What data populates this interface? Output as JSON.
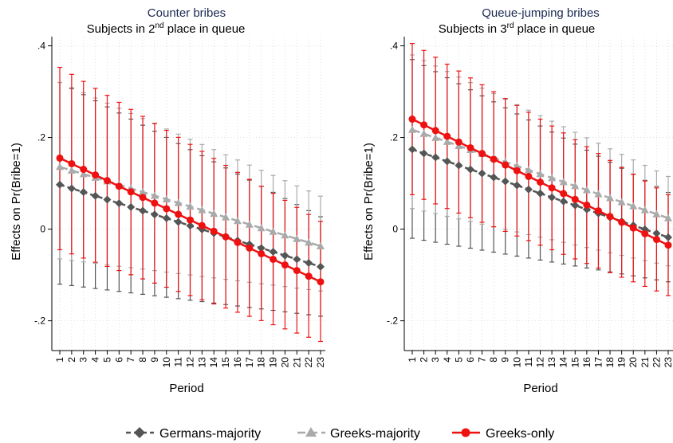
{
  "colors": {
    "Germans-majority": "#555555",
    "Greeks-majority": "#aaaaaa",
    "Greeks-only": "#ee1111"
  },
  "legend": {
    "placement": "bottom",
    "items": [
      "Germans-majority",
      "Greeks-majority",
      "Greeks-only"
    ]
  },
  "chart_data": [
    {
      "type": "line",
      "title": "Counter bribes",
      "subtitle": {
        "pre": "Subjects in 2",
        "sup": "nd",
        "post": " place in queue"
      },
      "xlabel": "Period",
      "ylabel": "Effects on Pr(Bribe=1)",
      "x": [
        1,
        2,
        3,
        4,
        5,
        6,
        7,
        8,
        9,
        10,
        11,
        12,
        13,
        14,
        15,
        16,
        17,
        18,
        19,
        20,
        21,
        22,
        23
      ],
      "xtick_labels": [
        "1",
        "2",
        "3",
        "4",
        "5",
        "6",
        "7",
        "8",
        "9",
        "10",
        "11",
        "12",
        "13",
        "14",
        "15",
        "16",
        "17",
        "18",
        "19",
        "20",
        "21",
        "22",
        "23"
      ],
      "ylim": [
        -0.265,
        0.42
      ],
      "yticks": [
        -0.2,
        0,
        0.2,
        0.4
      ],
      "ytick_labels": [
        "-.2",
        "0",
        ".2",
        ".4"
      ],
      "grid": true,
      "series": [
        {
          "name": "Germans-majority",
          "marker": "diamond",
          "dash": "6,4",
          "start": 0.097,
          "end": -0.082,
          "lower_start": -0.12,
          "lower_end": -0.19,
          "upper_start": 0.32,
          "upper_end": 0.027
        },
        {
          "name": "Greeks-majority",
          "marker": "triangle",
          "dash": "10,5",
          "start": 0.136,
          "end": -0.037,
          "lower_start": -0.065,
          "lower_end": -0.135,
          "upper_start": 0.32,
          "upper_end": 0.072
        },
        {
          "name": "Greeks-only",
          "marker": "circle",
          "dash": "",
          "start": 0.155,
          "end": -0.115,
          "lower_start": -0.045,
          "lower_end": -0.245,
          "upper_start": 0.353,
          "upper_end": 0.017
        }
      ]
    },
    {
      "type": "line",
      "title": "Queue-jumping bribes",
      "subtitle": {
        "pre": "Subjects in 3",
        "sup": "rd",
        "post": " place in queue"
      },
      "xlabel": "Period",
      "ylabel": "Effects on Pr(Bribe=1)",
      "x": [
        1,
        2,
        3,
        4,
        5,
        6,
        7,
        8,
        9,
        10,
        11,
        12,
        13,
        14,
        15,
        16,
        17,
        18,
        19,
        20,
        21,
        22,
        23
      ],
      "xtick_labels": [
        "1",
        "2",
        "3",
        "4",
        "5",
        "6",
        "7",
        "8",
        "9",
        "10",
        "11",
        "12",
        "13",
        "14",
        "15",
        "16",
        "17",
        "18",
        "19",
        "20",
        "21",
        "22",
        "23"
      ],
      "ylim": [
        -0.265,
        0.42
      ],
      "yticks": [
        -0.2,
        0,
        0.2,
        0.4
      ],
      "ytick_labels": [
        "-.2",
        "0",
        ".2",
        ".4"
      ],
      "grid": true,
      "series": [
        {
          "name": "Germans-majority",
          "marker": "diamond",
          "dash": "6,4",
          "start": 0.174,
          "end": -0.018,
          "lower_start": -0.02,
          "lower_end": -0.115,
          "upper_start": 0.37,
          "upper_end": 0.08
        },
        {
          "name": "Greeks-majority",
          "marker": "triangle",
          "dash": "10,5",
          "start": 0.217,
          "end": 0.024,
          "lower_start": 0.045,
          "lower_end": -0.08,
          "upper_start": 0.38,
          "upper_end": 0.115
        },
        {
          "name": "Greeks-only",
          "marker": "circle",
          "dash": "",
          "start": 0.24,
          "end": -0.035,
          "lower_start": 0.075,
          "lower_end": -0.145,
          "upper_start": 0.405,
          "upper_end": 0.075
        }
      ]
    }
  ]
}
